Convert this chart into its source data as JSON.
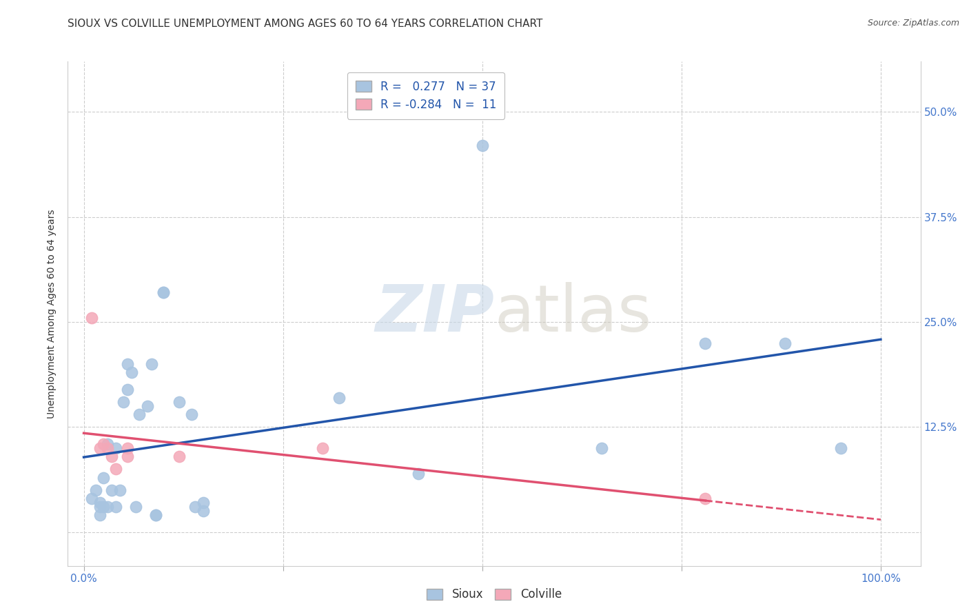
{
  "title": "SIOUX VS COLVILLE UNEMPLOYMENT AMONG AGES 60 TO 64 YEARS CORRELATION CHART",
  "source": "Source: ZipAtlas.com",
  "ylabel": "Unemployment Among Ages 60 to 64 years",
  "xlim": [
    -0.02,
    1.05
  ],
  "ylim": [
    -0.04,
    0.56
  ],
  "xticks": [
    0.0,
    0.25,
    0.5,
    0.75,
    1.0
  ],
  "xtick_labels": [
    "0.0%",
    "",
    "",
    "",
    "100.0%"
  ],
  "yticks": [
    0.0,
    0.125,
    0.25,
    0.375,
    0.5
  ],
  "ytick_labels_right": [
    "",
    "12.5%",
    "25.0%",
    "37.5%",
    "50.0%"
  ],
  "sioux_R": 0.277,
  "sioux_N": 37,
  "colville_R": -0.284,
  "colville_N": 11,
  "sioux_color": "#a8c4e0",
  "colville_color": "#f4a8b8",
  "sioux_line_color": "#2255aa",
  "colville_line_color": "#e05070",
  "background_color": "#ffffff",
  "grid_color": "#cccccc",
  "sioux_x": [
    0.01,
    0.015,
    0.02,
    0.02,
    0.02,
    0.025,
    0.025,
    0.03,
    0.03,
    0.035,
    0.04,
    0.04,
    0.045,
    0.05,
    0.055,
    0.055,
    0.06,
    0.065,
    0.07,
    0.08,
    0.085,
    0.09,
    0.09,
    0.1,
    0.1,
    0.12,
    0.135,
    0.14,
    0.15,
    0.15,
    0.32,
    0.42,
    0.5,
    0.65,
    0.78,
    0.88,
    0.95
  ],
  "sioux_y": [
    0.04,
    0.05,
    0.035,
    0.03,
    0.02,
    0.065,
    0.03,
    0.105,
    0.03,
    0.05,
    0.1,
    0.03,
    0.05,
    0.155,
    0.17,
    0.2,
    0.19,
    0.03,
    0.14,
    0.15,
    0.2,
    0.02,
    0.02,
    0.285,
    0.285,
    0.155,
    0.14,
    0.03,
    0.035,
    0.025,
    0.16,
    0.07,
    0.46,
    0.1,
    0.225,
    0.225,
    0.1
  ],
  "colville_x": [
    0.01,
    0.02,
    0.025,
    0.03,
    0.035,
    0.04,
    0.055,
    0.055,
    0.12,
    0.3,
    0.78
  ],
  "colville_y": [
    0.255,
    0.1,
    0.105,
    0.1,
    0.09,
    0.075,
    0.1,
    0.09,
    0.09,
    0.1,
    0.04
  ],
  "watermark_zip": "ZIP",
  "watermark_atlas": "atlas",
  "title_fontsize": 11,
  "axis_label_fontsize": 10,
  "tick_fontsize": 11,
  "legend_fontsize": 12
}
